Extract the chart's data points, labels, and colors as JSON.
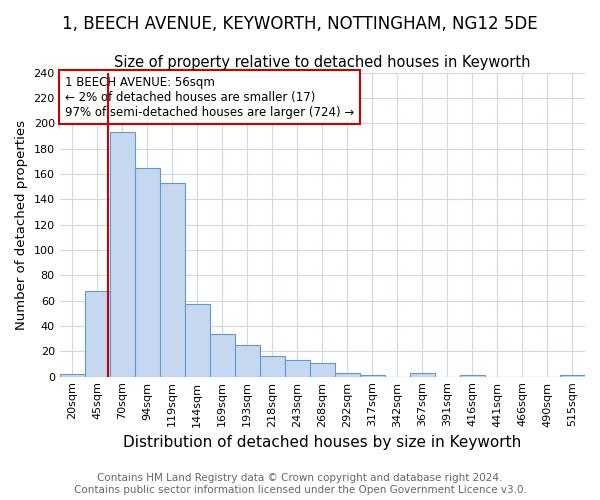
{
  "title": "1, BEECH AVENUE, KEYWORTH, NOTTINGHAM, NG12 5DE",
  "subtitle": "Size of property relative to detached houses in Keyworth",
  "xlabel": "Distribution of detached houses by size in Keyworth",
  "ylabel": "Number of detached properties",
  "footer_line1": "Contains HM Land Registry data © Crown copyright and database right 2024.",
  "footer_line2": "Contains public sector information licensed under the Open Government Licence v3.0.",
  "categories": [
    "20sqm",
    "45sqm",
    "70sqm",
    "94sqm",
    "119sqm",
    "144sqm",
    "169sqm",
    "193sqm",
    "218sqm",
    "243sqm",
    "268sqm",
    "292sqm",
    "317sqm",
    "342sqm",
    "367sqm",
    "391sqm",
    "416sqm",
    "441sqm",
    "466sqm",
    "490sqm",
    "515sqm"
  ],
  "values": [
    2,
    68,
    193,
    165,
    153,
    57,
    34,
    25,
    16,
    13,
    11,
    3,
    1,
    0,
    3,
    0,
    1,
    0,
    0,
    0,
    1
  ],
  "bar_color": "#c5d8f0",
  "bar_edge_color": "#5b9bd5",
  "red_line_x": 1.44,
  "annotation_text": "1 BEECH AVENUE: 56sqm\n← 2% of detached houses are smaller (17)\n97% of semi-detached houses are larger (724) →",
  "annotation_box_color": "#ffffff",
  "annotation_box_edge": "#cc0000",
  "red_line_color": "#cc0000",
  "ylim": [
    0,
    240
  ],
  "yticks": [
    0,
    20,
    40,
    60,
    80,
    100,
    120,
    140,
    160,
    180,
    200,
    220,
    240
  ],
  "background_color": "#ffffff",
  "plot_bg_color": "#ffffff",
  "grid_color": "#d0d8e8",
  "title_fontsize": 12,
  "subtitle_fontsize": 10.5,
  "xlabel_fontsize": 11,
  "ylabel_fontsize": 9.5,
  "tick_fontsize": 8,
  "annotation_fontsize": 8.5,
  "footer_fontsize": 7.5
}
